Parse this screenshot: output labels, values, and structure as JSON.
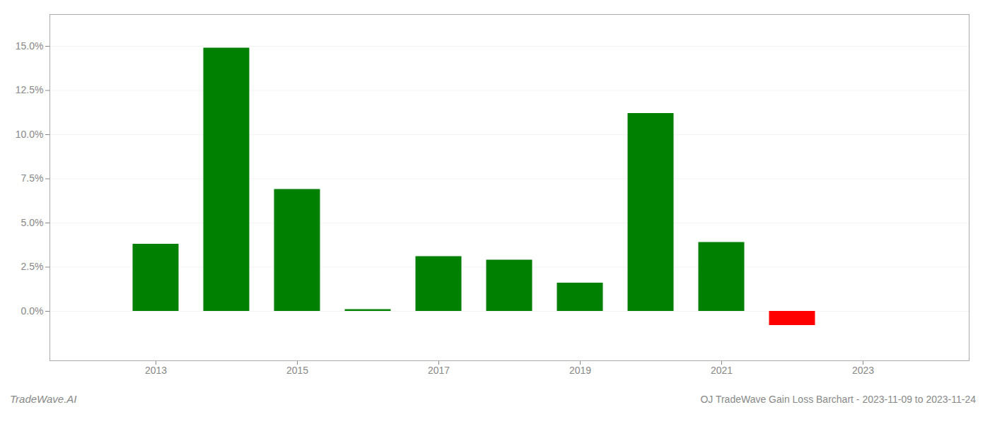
{
  "chart_data": {
    "type": "bar",
    "title": "OJ TradeWave Gain Loss Barchart - 2023-11-09 to 2023-11-24",
    "annotations": [
      "TradeWave.AI"
    ],
    "x": [
      2013,
      2014,
      2015,
      2016,
      2017,
      2018,
      2019,
      2020,
      2021,
      2022
    ],
    "values": [
      0.038,
      0.149,
      0.069,
      0.001,
      0.031,
      0.029,
      0.016,
      0.112,
      0.039,
      -0.008
    ],
    "colors": [
      "#008000",
      "#008000",
      "#008000",
      "#008000",
      "#008000",
      "#008000",
      "#008000",
      "#008000",
      "#008000",
      "#ff0000"
    ],
    "xlim": [
      2011.5,
      2024.5
    ],
    "xticks": [
      2013,
      2015,
      2017,
      2019,
      2021,
      2023
    ],
    "ylim": [
      -0.028,
      0.168
    ],
    "yticks": [
      {
        "value": 0.0,
        "label": "0.0%"
      },
      {
        "value": 0.025,
        "label": "2.5%"
      },
      {
        "value": 0.05,
        "label": "5.0%"
      },
      {
        "value": 0.075,
        "label": "7.5%"
      },
      {
        "value": 0.1,
        "label": "10.0%"
      },
      {
        "value": 0.125,
        "label": "12.5%"
      },
      {
        "value": 0.15,
        "label": "15.0%"
      }
    ],
    "grid": true
  }
}
